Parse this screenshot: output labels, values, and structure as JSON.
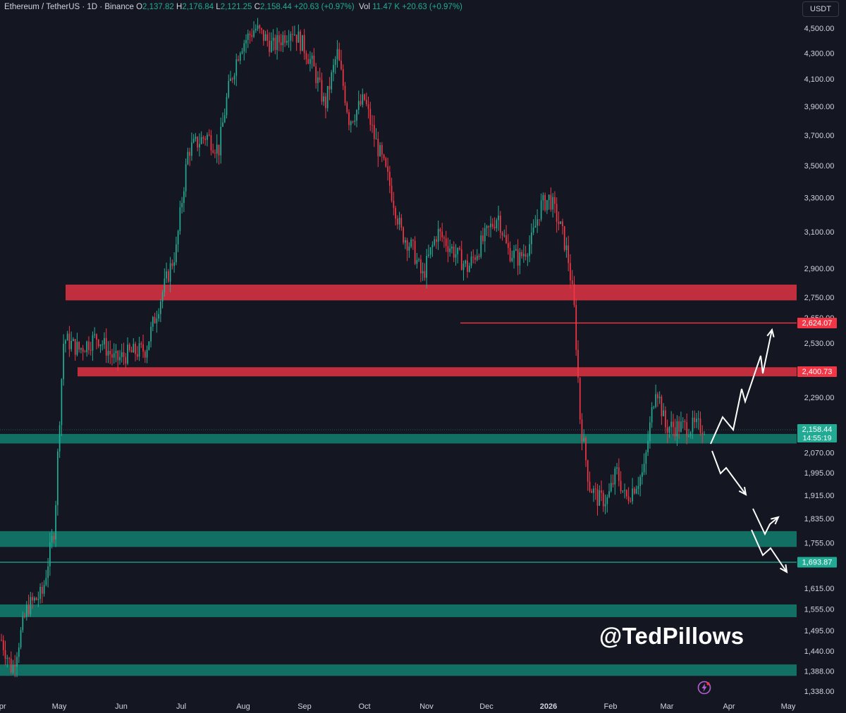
{
  "header": {
    "symbol": "Ethereum / TetherUS · 1D · Binance",
    "o_label": "O",
    "o_value": "2,137.82",
    "h_label": "H",
    "h_value": "2,176.84",
    "l_label": "L",
    "l_value": "2,121.25",
    "c_label": "C",
    "c_value": "2,158.44",
    "change": "+20.63 (+0.97%)",
    "vol_label": "Vol",
    "vol_value": "11.47 K",
    "vol_change": "+20.63 (+0.97%)"
  },
  "currency": "USDT",
  "watermark": "@TedPillows",
  "colors": {
    "background": "#141722",
    "up": "#22ab94",
    "down": "#f23645",
    "resistance_zone": "#c9303f",
    "support_zone": "#127566",
    "axis_text": "#d1d4dc"
  },
  "chart_data": {
    "type": "candlestick",
    "title": "Ethereum / TetherUS · 1D · Binance",
    "y_axis": {
      "scale": "log",
      "ticks": [
        4500,
        4300,
        4100,
        3900,
        3700,
        3500,
        3300,
        3100,
        2900,
        2750,
        2650,
        2530,
        2290,
        2070,
        1995,
        1915,
        1835,
        1755,
        1615,
        1555,
        1495,
        1440,
        1388,
        1338
      ],
      "tick_labels": [
        "4,500.00",
        "4,300.00",
        "4,100.00",
        "3,900.00",
        "3,700.00",
        "3,500.00",
        "3,300.00",
        "3,100.00",
        "2,900.00",
        "2,750.00",
        "2,650.00",
        "2,530.00",
        "2,290.00",
        "2,070.00",
        "1,995.00",
        "1,915.00",
        "1,835.00",
        "1,755.00",
        "1,615.00",
        "1,555.00",
        "1,495.00",
        "1,440.00",
        "1,388.00",
        "1,338.00"
      ]
    },
    "x_axis": {
      "labels": [
        "Apr",
        "May",
        "Jun",
        "Jul",
        "Aug",
        "Sep",
        "Oct",
        "Nov",
        "Dec",
        "2026",
        "Feb",
        "Mar",
        "Apr",
        "May"
      ]
    },
    "price_labels": [
      {
        "value": 2624.07,
        "text": "2,624.07",
        "kind": "resistance"
      },
      {
        "value": 2400.73,
        "text": "2,400.73",
        "kind": "resistance"
      },
      {
        "value": 2158.44,
        "text": "2,158.44",
        "sub": "14:55:19",
        "kind": "current"
      },
      {
        "value": 1693.87,
        "text": "1,693.87",
        "kind": "support"
      }
    ],
    "zones": [
      {
        "kind": "resistance",
        "from": 2735,
        "to": 2815
      },
      {
        "kind": "resistance",
        "from": 2380,
        "to": 2420
      },
      {
        "kind": "support",
        "from": 2105,
        "to": 2142
      },
      {
        "kind": "support",
        "from": 1742,
        "to": 1793
      },
      {
        "kind": "support",
        "from": 1532,
        "to": 1568
      },
      {
        "kind": "support",
        "from": 1376,
        "to": 1405
      }
    ],
    "lines": [
      {
        "kind": "resistance",
        "value": 2624.07
      },
      {
        "kind": "support",
        "value": 1693.87
      }
    ],
    "key_prices": [
      {
        "date": "2025-04",
        "price": 1400
      },
      {
        "date": "2025-05",
        "price": 2600
      },
      {
        "date": "2025-06",
        "price": 2500
      },
      {
        "date": "2025-07",
        "price": 3000
      },
      {
        "date": "2025-08",
        "price": 4600
      },
      {
        "date": "2025-09",
        "price": 4500
      },
      {
        "date": "2025-10",
        "price": 4200
      },
      {
        "date": "2025-11",
        "price": 3100
      },
      {
        "date": "2025-12",
        "price": 2950
      },
      {
        "date": "2026-01",
        "price": 3300
      },
      {
        "date": "2026-02",
        "price": 2000
      },
      {
        "date": "2026-03",
        "price": 2158.44
      }
    ],
    "scenarios": [
      {
        "name": "bullish",
        "path": [
          2158.44,
          2290,
          2240,
          2420,
          2380,
          2610
        ]
      },
      {
        "name": "bearish",
        "path": [
          2158.44,
          2010,
          2030,
          1900,
          1850,
          1780,
          1800,
          1680
        ]
      }
    ]
  }
}
